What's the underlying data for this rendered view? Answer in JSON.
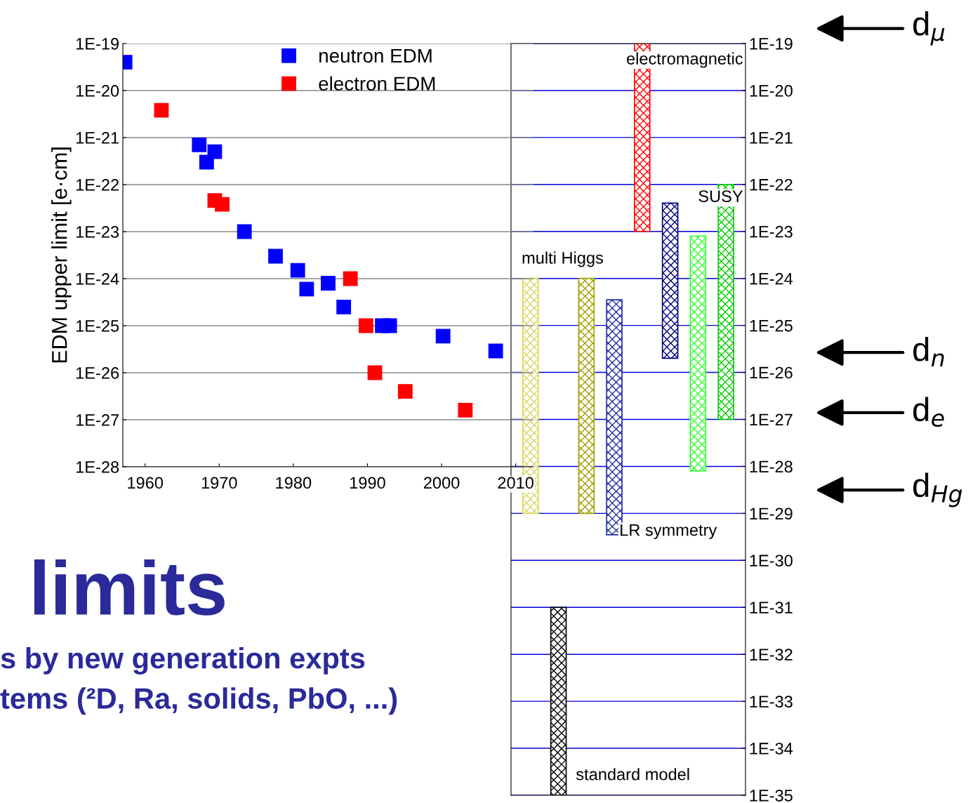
{
  "chart_data": [
    {
      "type": "scatter",
      "ylabel": "EDM upper limit [e·cm]",
      "log": "y",
      "marker": "square",
      "legend": "top",
      "grid": "y",
      "xlim": [
        1957,
        2012.4
      ],
      "xticks": [
        1960,
        1970,
        1980,
        1990,
        2000,
        2010
      ],
      "ylim": [
        1e-28,
        1e-19
      ],
      "yticks": [
        {
          "value": 1e-28,
          "label": "1E-28"
        },
        {
          "value": 1e-27,
          "label": "1E-27"
        },
        {
          "value": 1e-26,
          "label": "1E-26"
        },
        {
          "value": 1e-25,
          "label": "1E-25"
        },
        {
          "value": 1e-24,
          "label": "1E-24"
        },
        {
          "value": 1e-23,
          "label": "1E-23"
        },
        {
          "value": 1e-22,
          "label": "1E-22"
        },
        {
          "value": 1e-21,
          "label": "1E-21"
        },
        {
          "value": 1e-20,
          "label": "1E-20"
        },
        {
          "value": 1e-19,
          "label": "1E-19"
        }
      ],
      "series": [
        {
          "name": "neutron EDM",
          "color": "#0000ff",
          "x": [
            1957.3,
            1967.3,
            1969.4,
            1968.3,
            1973.4,
            1977.6,
            1980.6,
            1981.8,
            1984.7,
            1986.8,
            1992.0,
            1993.0,
            2000.2,
            2007.3
          ],
          "values": [
            4e-20,
            7e-22,
            5e-22,
            3e-22,
            1e-23,
            3e-24,
            1.5e-24,
            6e-25,
            8e-25,
            2.5e-25,
            1e-25,
            1e-25,
            6e-26,
            2.9e-26
          ]
        },
        {
          "name": "electron EDM",
          "color": "#ff0000",
          "x": [
            1962.2,
            1969.4,
            1970.4,
            1987.7,
            1989.8,
            1991.0,
            1995.1,
            2003.2
          ],
          "values": [
            3.8e-21,
            4.6e-23,
            3.8e-23,
            1e-24,
            1e-25,
            1e-26,
            4e-27,
            1.6e-27
          ]
        }
      ],
      "annotations": [
        "limits",
        "s by new generation expts",
        "tems (²D, Ra, solids, PbO, ...)"
      ]
    },
    {
      "type": "bar",
      "log": "y",
      "grid": "y",
      "categories": [
        null,
        null,
        null,
        null,
        null,
        null,
        null,
        null
      ],
      "ylim": [
        1e-35,
        1e-19
      ],
      "yticks": [
        {
          "value": 1e-35,
          "label": "1E-35"
        },
        {
          "value": 1e-34,
          "label": "1E-34"
        },
        {
          "value": 1e-33,
          "label": "1E-33"
        },
        {
          "value": 1e-32,
          "label": "1E-32"
        },
        {
          "value": 1e-31,
          "label": "1E-31"
        },
        {
          "value": 1e-30,
          "label": "1E-30"
        },
        {
          "value": 1e-29,
          "label": "1E-29"
        },
        {
          "value": 1e-28,
          "label": "1E-28"
        },
        {
          "value": 1e-27,
          "label": "1E-27"
        },
        {
          "value": 1e-26,
          "label": "1E-26"
        },
        {
          "value": 1e-25,
          "label": "1E-25"
        },
        {
          "value": 1e-24,
          "label": "1E-24"
        },
        {
          "value": 1e-23,
          "label": "1E-23"
        },
        {
          "value": 1e-22,
          "label": "1E-22"
        },
        {
          "value": 1e-21,
          "label": "1E-21"
        },
        {
          "value": 1e-20,
          "label": "1E-20"
        },
        {
          "value": 1e-19,
          "label": "1E-19"
        }
      ],
      "values": [
        1e-24,
        1e-31,
        1e-24,
        3.5e-25,
        1e-19,
        4e-23,
        8e-24,
        1e-22
      ],
      "base": [
        1e-29,
        1e-35,
        1e-29,
        3.5e-30,
        1e-23,
        2e-26,
        8e-29,
        1e-27
      ],
      "colors": [
        "#d8d860",
        "#000000",
        "#a0a000",
        "#2030a0",
        "#ff0000",
        "#000080",
        "#33ff33",
        "#00cc00"
      ],
      "annotations": [
        "electromagnetic",
        "SUSY",
        "multi Higgs",
        "LR symmetry",
        "standard model",
        "d$_{μ}$",
        "d$_{n}$",
        "d$_{e}$",
        "d$_{Hg}$"
      ]
    }
  ]
}
